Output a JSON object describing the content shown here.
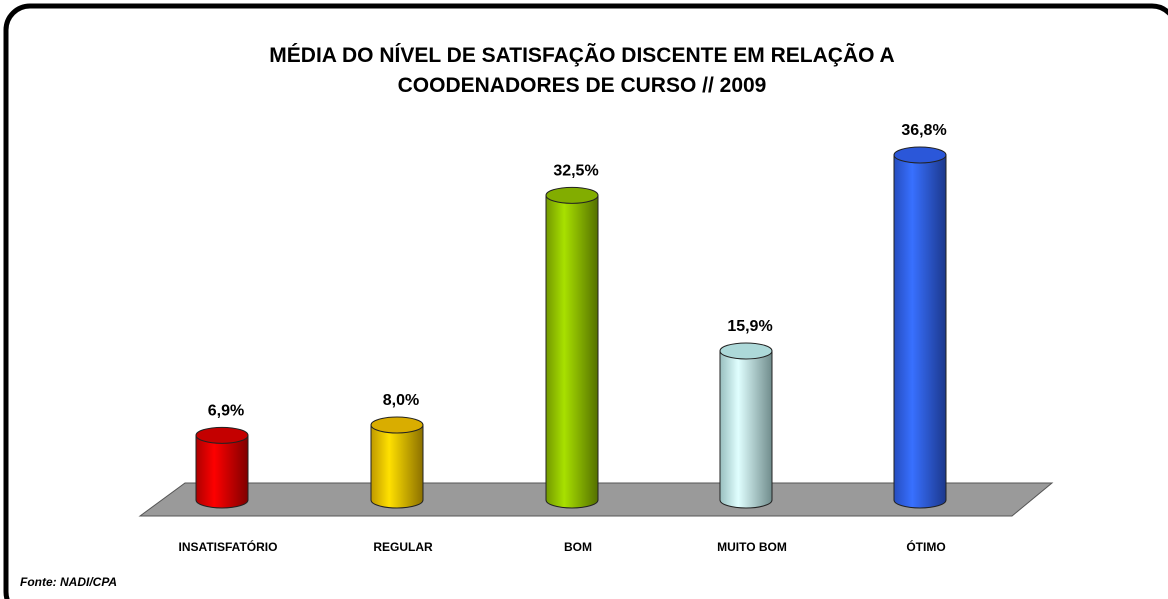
{
  "chart_data": {
    "type": "bar3d",
    "title": [
      "MÉDIA DO NÍVEL DE SATISFAÇÃO DISCENTE  EM RELAÇÃO A",
      "COODENADORES DE CURSO //  2009"
    ],
    "categories": [
      "INSATISFATÓRIO",
      "REGULAR",
      "BOM",
      "MUITO BOM",
      "ÓTIMO"
    ],
    "values": [
      6.9,
      8.0,
      32.5,
      15.9,
      36.8
    ],
    "value_labels": [
      "6,9%",
      "8,0%",
      "32,5%",
      "15,9%",
      "36,8%"
    ],
    "colors": [
      "#e60000",
      "#ffcc00",
      "#99cc00",
      "#ccffff",
      "#3366ff"
    ],
    "source": "Fonte:  NADI/CPA"
  }
}
